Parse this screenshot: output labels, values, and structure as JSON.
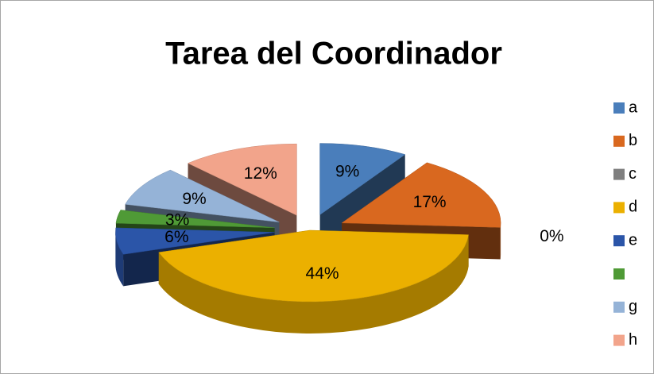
{
  "chart_data": {
    "type": "pie",
    "title": "Tarea del Coordinador",
    "categories": [
      "a",
      "b",
      "c",
      "d",
      "e",
      null,
      "g",
      "h"
    ],
    "values": [
      9,
      17,
      0,
      44,
      6,
      3,
      9,
      12
    ],
    "value_labels": [
      "9%",
      "17%",
      "0%",
      "44%",
      "6%",
      "3%",
      "9%",
      "12%"
    ],
    "colors": [
      "#4a7ebb",
      "#d9681f",
      "#7f7f7f",
      "#ebb000",
      "#2b55a8",
      "#4f9a36",
      "#95b3d7",
      "#f2a48b"
    ],
    "legend": "right"
  }
}
